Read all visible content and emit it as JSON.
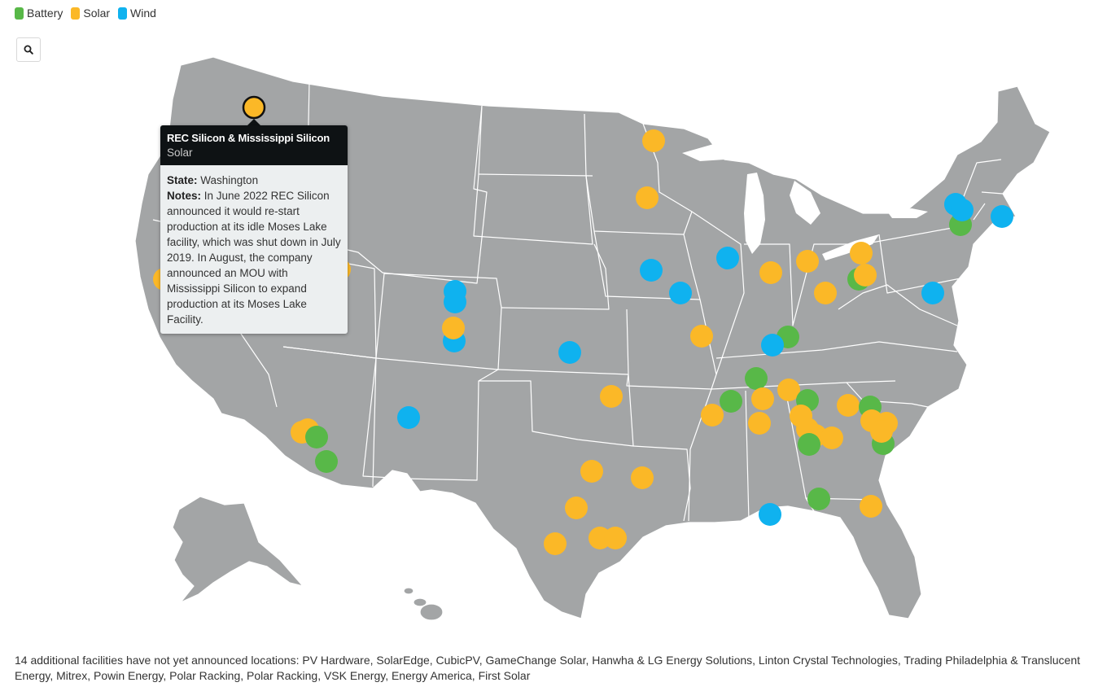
{
  "legend": [
    {
      "label": "Battery",
      "color": "#58b848"
    },
    {
      "label": "Solar",
      "color": "#fbb827"
    },
    {
      "label": "Wind",
      "color": "#0fb2ef"
    }
  ],
  "search": {
    "icon": "search-icon"
  },
  "map": {
    "land_color": "#a3a5a6",
    "border_color": "#ffffff",
    "colors": {
      "Battery": "#58b848",
      "Solar": "#fbb827",
      "Wind": "#0fb2ef"
    },
    "selected_marker": {
      "type": "Solar",
      "outline": "#111111"
    }
  },
  "tooltip": {
    "title": "REC Silicon & Mississippi Silicon",
    "type": "Solar",
    "state_label": "State:",
    "state": "Washington",
    "notes_label": "Notes:",
    "notes": "In June 2022 REC Silicon announced it would re-start production at its idle Moses Lake facility, which was shut down in July 2019. In August, the company announced an MOU with Mississippi Silicon to expand production at its Moses Lake Facility."
  },
  "footer": {
    "text": "14 additional facilities have not yet announced locations: PV Hardware, SolarEdge, CubicPV, GameChange Solar, Hanwha & LG Energy Solutions, Linton Crystal Technologies, Trading Philadelphia & Translucent Energy, Mitrex, Powin Energy, Polar Racking, Polar Racking, VSK Energy, Energy America, First Solar"
  }
}
